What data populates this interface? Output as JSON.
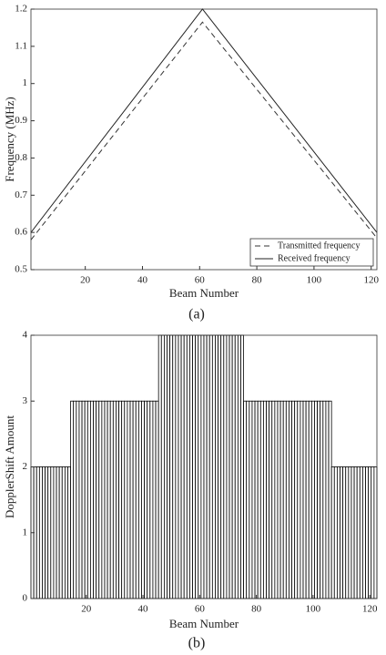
{
  "chart_data": [
    {
      "type": "line",
      "xlabel": "Beam Number",
      "ylabel": "Frequency (MHz)",
      "caption": "(a)",
      "xlim": [
        1,
        122
      ],
      "xticks": [
        20,
        40,
        60,
        80,
        100,
        120
      ],
      "ylim": [
        0.5,
        1.2
      ],
      "yticks": [
        0.5,
        0.6,
        0.7,
        0.8,
        0.9,
        1,
        1.1,
        1.2
      ],
      "legend": "lower right",
      "series": [
        {
          "name": "Transmitted frequency",
          "color": "#333333",
          "style": "dashed",
          "x": [
            1,
            61,
            122
          ],
          "values": [
            0.58,
            1.165,
            0.585
          ]
        },
        {
          "name": "Received frequency",
          "color": "#222222",
          "style": "solid",
          "x": [
            1,
            61,
            122
          ],
          "values": [
            0.6,
            1.2,
            0.6
          ]
        }
      ]
    },
    {
      "type": "bar",
      "xlabel": "Beam Number",
      "ylabel": "DopplerShift Amount",
      "caption": "(b)",
      "xlim": [
        0.5,
        122.5
      ],
      "xticks": [
        20,
        40,
        60,
        80,
        100,
        120
      ],
      "ylim": [
        0,
        4
      ],
      "yticks": [
        0,
        1,
        2,
        3,
        4
      ],
      "color": "#ffffff",
      "edgecolor": "#000000",
      "x": [
        1,
        2,
        3,
        4,
        5,
        6,
        7,
        8,
        9,
        10,
        11,
        12,
        13,
        14,
        15,
        16,
        17,
        18,
        19,
        20,
        21,
        22,
        23,
        24,
        25,
        26,
        27,
        28,
        29,
        30,
        31,
        32,
        33,
        34,
        35,
        36,
        37,
        38,
        39,
        40,
        41,
        42,
        43,
        44,
        45,
        46,
        47,
        48,
        49,
        50,
        51,
        52,
        53,
        54,
        55,
        56,
        57,
        58,
        59,
        60,
        61,
        62,
        63,
        64,
        65,
        66,
        67,
        68,
        69,
        70,
        71,
        72,
        73,
        74,
        75,
        76,
        77,
        78,
        79,
        80,
        81,
        82,
        83,
        84,
        85,
        86,
        87,
        88,
        89,
        90,
        91,
        92,
        93,
        94,
        95,
        96,
        97,
        98,
        99,
        100,
        101,
        102,
        103,
        104,
        105,
        106,
        107,
        108,
        109,
        110,
        111,
        112,
        113,
        114,
        115,
        116,
        117,
        118,
        119,
        120,
        121,
        122
      ],
      "values": [
        2,
        2,
        2,
        2,
        2,
        2,
        2,
        2,
        2,
        2,
        2,
        2,
        2,
        2,
        3,
        3,
        3,
        3,
        3,
        3,
        3,
        3,
        3,
        3,
        3,
        3,
        3,
        3,
        3,
        3,
        3,
        3,
        3,
        3,
        3,
        3,
        3,
        3,
        3,
        3,
        3,
        3,
        3,
        3,
        3,
        4,
        4,
        4,
        4,
        4,
        4,
        4,
        4,
        4,
        4,
        4,
        4,
        4,
        4,
        4,
        4,
        4,
        4,
        4,
        4,
        4,
        4,
        4,
        4,
        4,
        4,
        4,
        4,
        4,
        4,
        3,
        3,
        3,
        3,
        3,
        3,
        3,
        3,
        3,
        3,
        3,
        3,
        3,
        3,
        3,
        3,
        3,
        3,
        3,
        3,
        3,
        3,
        3,
        3,
        3,
        3,
        3,
        3,
        3,
        3,
        3,
        2,
        2,
        2,
        2,
        2,
        2,
        2,
        2,
        2,
        2,
        2,
        2,
        2,
        2,
        2,
        2
      ]
    }
  ]
}
